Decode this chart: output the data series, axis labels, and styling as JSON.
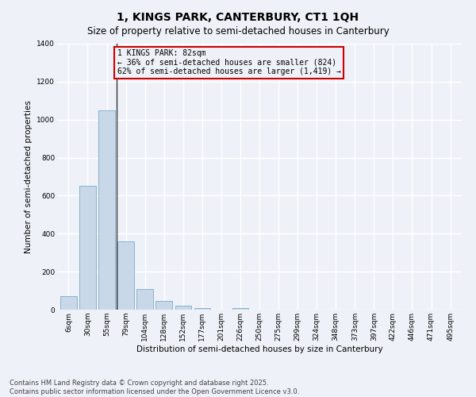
{
  "title": "1, KINGS PARK, CANTERBURY, CT1 1QH",
  "subtitle": "Size of property relative to semi-detached houses in Canterbury",
  "xlabel": "Distribution of semi-detached houses by size in Canterbury",
  "ylabel": "Number of semi-detached properties",
  "categories": [
    "6sqm",
    "30sqm",
    "55sqm",
    "79sqm",
    "104sqm",
    "128sqm",
    "152sqm",
    "177sqm",
    "201sqm",
    "226sqm",
    "250sqm",
    "275sqm",
    "299sqm",
    "324sqm",
    "348sqm",
    "373sqm",
    "397sqm",
    "422sqm",
    "446sqm",
    "471sqm",
    "495sqm"
  ],
  "values": [
    70,
    650,
    1050,
    360,
    110,
    45,
    20,
    10,
    0,
    10,
    0,
    0,
    0,
    0,
    0,
    0,
    0,
    0,
    0,
    0,
    0
  ],
  "bar_color": "#c8d8e8",
  "bar_edge_color": "#7aaac8",
  "annotation_text": "1 KINGS PARK: 82sqm\n← 36% of semi-detached houses are smaller (824)\n62% of semi-detached houses are larger (1,419) →",
  "vline_color": "#333333",
  "box_edge_color": "#cc0000",
  "ylim": [
    0,
    1400
  ],
  "yticks": [
    0,
    200,
    400,
    600,
    800,
    1000,
    1200,
    1400
  ],
  "footer_line1": "Contains HM Land Registry data © Crown copyright and database right 2025.",
  "footer_line2": "Contains public sector information licensed under the Open Government Licence v3.0.",
  "bg_color": "#eef2f8",
  "grid_color": "#ffffff",
  "title_fontsize": 10,
  "subtitle_fontsize": 8.5,
  "axis_label_fontsize": 7.5,
  "tick_fontsize": 6.5,
  "annotation_fontsize": 7,
  "footer_fontsize": 6
}
